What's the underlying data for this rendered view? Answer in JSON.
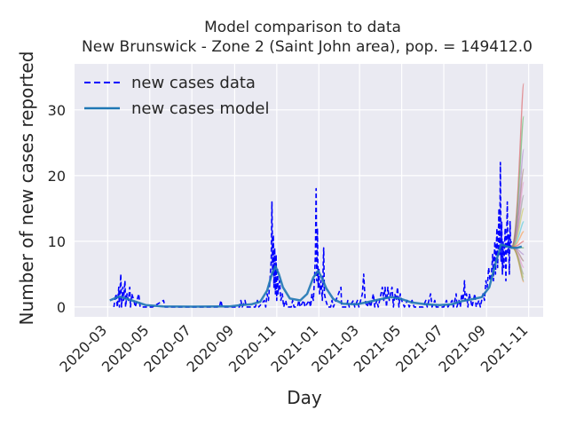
{
  "chart_data": {
    "type": "line",
    "title": "Model comparison to data",
    "subtitle": "New Brunswick - Zone 2 (Saint John area), pop. = 149412.0",
    "xlabel": "Day",
    "ylabel": "Number of new cases reported",
    "x_type": "date",
    "xlim": [
      "2020-01-13",
      "2021-11-22"
    ],
    "ylim": [
      -1.5,
      37
    ],
    "x_ticks": [
      "2020-03",
      "2020-05",
      "2020-07",
      "2020-09",
      "2020-11",
      "2021-01",
      "2021-03",
      "2021-05",
      "2021-07",
      "2021-09",
      "2021-11"
    ],
    "y_ticks": [
      0,
      10,
      20,
      30
    ],
    "grid": true,
    "legend_position": "top-left",
    "background": "#eaeaf2",
    "series": [
      {
        "name": "new cases data",
        "style": "dashed",
        "color": "#0000ff",
        "points": [
          [
            "2020-03-10",
            0
          ],
          [
            "2020-03-13",
            2
          ],
          [
            "2020-03-15",
            0
          ],
          [
            "2020-03-17",
            3
          ],
          [
            "2020-03-18",
            0
          ],
          [
            "2020-03-20",
            5
          ],
          [
            "2020-03-21",
            0
          ],
          [
            "2020-03-23",
            3
          ],
          [
            "2020-03-24",
            1
          ],
          [
            "2020-03-26",
            4
          ],
          [
            "2020-03-27",
            0
          ],
          [
            "2020-03-29",
            2
          ],
          [
            "2020-03-31",
            1
          ],
          [
            "2020-04-02",
            3
          ],
          [
            "2020-04-03",
            0
          ],
          [
            "2020-04-05",
            2
          ],
          [
            "2020-04-08",
            1
          ],
          [
            "2020-04-10",
            0
          ],
          [
            "2020-04-15",
            2
          ],
          [
            "2020-04-17",
            0
          ],
          [
            "2020-05-05",
            0
          ],
          [
            "2020-05-21",
            1
          ],
          [
            "2020-05-23",
            0
          ],
          [
            "2020-08-10",
            0
          ],
          [
            "2020-08-12",
            1
          ],
          [
            "2020-08-14",
            0
          ],
          [
            "2020-09-08",
            0
          ],
          [
            "2020-09-10",
            1
          ],
          [
            "2020-09-12",
            0
          ],
          [
            "2020-09-16",
            1
          ],
          [
            "2020-09-18",
            0
          ],
          [
            "2020-10-01",
            0
          ],
          [
            "2020-10-04",
            1
          ],
          [
            "2020-10-06",
            0
          ],
          [
            "2020-10-14",
            1
          ],
          [
            "2020-10-16",
            0
          ],
          [
            "2020-10-18",
            2
          ],
          [
            "2020-10-20",
            1
          ],
          [
            "2020-10-22",
            4
          ],
          [
            "2020-10-24",
            7
          ],
          [
            "2020-10-25",
            16
          ],
          [
            "2020-10-26",
            5
          ],
          [
            "2020-10-27",
            11
          ],
          [
            "2020-10-28",
            3
          ],
          [
            "2020-10-29",
            9
          ],
          [
            "2020-10-30",
            2
          ],
          [
            "2020-10-31",
            8
          ],
          [
            "2020-11-01",
            1
          ],
          [
            "2020-11-02",
            6
          ],
          [
            "2020-11-03",
            2
          ],
          [
            "2020-11-05",
            4
          ],
          [
            "2020-11-07",
            1
          ],
          [
            "2020-11-09",
            2
          ],
          [
            "2020-11-11",
            0
          ],
          [
            "2020-11-14",
            1
          ],
          [
            "2020-11-16",
            0
          ],
          [
            "2020-11-22",
            0
          ],
          [
            "2020-11-24",
            1
          ],
          [
            "2020-11-26",
            0
          ],
          [
            "2020-12-01",
            0
          ],
          [
            "2020-12-03",
            1
          ],
          [
            "2020-12-05",
            0
          ],
          [
            "2020-12-10",
            1
          ],
          [
            "2020-12-12",
            0
          ],
          [
            "2020-12-18",
            1
          ],
          [
            "2020-12-20",
            0
          ],
          [
            "2020-12-22",
            2
          ],
          [
            "2020-12-24",
            1
          ],
          [
            "2020-12-26",
            5
          ],
          [
            "2020-12-27",
            8
          ],
          [
            "2020-12-28",
            18
          ],
          [
            "2020-12-29",
            4
          ],
          [
            "2020-12-30",
            12
          ],
          [
            "2020-12-31",
            3
          ],
          [
            "2021-01-01",
            6
          ],
          [
            "2021-01-02",
            2
          ],
          [
            "2021-01-04",
            4
          ],
          [
            "2021-01-06",
            1
          ],
          [
            "2021-01-08",
            9
          ],
          [
            "2021-01-09",
            2
          ],
          [
            "2021-01-11",
            1
          ],
          [
            "2021-01-14",
            0
          ],
          [
            "2021-01-18",
            0
          ],
          [
            "2021-01-20",
            1
          ],
          [
            "2021-01-22",
            0
          ],
          [
            "2021-02-02",
            3
          ],
          [
            "2021-02-03",
            0
          ],
          [
            "2021-02-10",
            0
          ],
          [
            "2021-02-12",
            1
          ],
          [
            "2021-02-14",
            0
          ],
          [
            "2021-02-20",
            1
          ],
          [
            "2021-02-22",
            0
          ],
          [
            "2021-02-26",
            1
          ],
          [
            "2021-02-28",
            0
          ],
          [
            "2021-03-05",
            2
          ],
          [
            "2021-03-07",
            5
          ],
          [
            "2021-03-09",
            1
          ],
          [
            "2021-03-12",
            0
          ],
          [
            "2021-03-15",
            1
          ],
          [
            "2021-03-17",
            0
          ],
          [
            "2021-03-21",
            2
          ],
          [
            "2021-03-23",
            0
          ],
          [
            "2021-03-26",
            1
          ],
          [
            "2021-03-28",
            0
          ],
          [
            "2021-04-01",
            2
          ],
          [
            "2021-04-03",
            3
          ],
          [
            "2021-04-05",
            1
          ],
          [
            "2021-04-07",
            3
          ],
          [
            "2021-04-09",
            0
          ],
          [
            "2021-04-11",
            3
          ],
          [
            "2021-04-13",
            1
          ],
          [
            "2021-04-15",
            2
          ],
          [
            "2021-04-17",
            3
          ],
          [
            "2021-04-19",
            0
          ],
          [
            "2021-04-21",
            2
          ],
          [
            "2021-04-23",
            1
          ],
          [
            "2021-04-25",
            3
          ],
          [
            "2021-04-27",
            0
          ],
          [
            "2021-04-29",
            2
          ],
          [
            "2021-05-01",
            1
          ],
          [
            "2021-05-05",
            0
          ],
          [
            "2021-05-09",
            1
          ],
          [
            "2021-05-12",
            0
          ],
          [
            "2021-05-16",
            1
          ],
          [
            "2021-05-19",
            0
          ],
          [
            "2021-06-01",
            0
          ],
          [
            "2021-06-05",
            1
          ],
          [
            "2021-06-07",
            0
          ],
          [
            "2021-06-12",
            2
          ],
          [
            "2021-06-14",
            0
          ],
          [
            "2021-06-18",
            1
          ],
          [
            "2021-06-20",
            0
          ],
          [
            "2021-07-01",
            0
          ],
          [
            "2021-07-05",
            1
          ],
          [
            "2021-07-07",
            0
          ],
          [
            "2021-07-13",
            1
          ],
          [
            "2021-07-15",
            0
          ],
          [
            "2021-07-19",
            2
          ],
          [
            "2021-07-20",
            0
          ],
          [
            "2021-07-23",
            1
          ],
          [
            "2021-07-25",
            0
          ],
          [
            "2021-07-27",
            2
          ],
          [
            "2021-07-29",
            1
          ],
          [
            "2021-07-31",
            4
          ],
          [
            "2021-08-01",
            1
          ],
          [
            "2021-08-03",
            2
          ],
          [
            "2021-08-05",
            0
          ],
          [
            "2021-08-07",
            2
          ],
          [
            "2021-08-09",
            1
          ],
          [
            "2021-08-11",
            0
          ],
          [
            "2021-08-15",
            2
          ],
          [
            "2021-08-17",
            0
          ],
          [
            "2021-08-21",
            1
          ],
          [
            "2021-08-23",
            0
          ],
          [
            "2021-08-27",
            2
          ],
          [
            "2021-08-29",
            1
          ],
          [
            "2021-08-31",
            4
          ],
          [
            "2021-09-02",
            3
          ],
          [
            "2021-09-04",
            6
          ],
          [
            "2021-09-06",
            4
          ],
          [
            "2021-09-08",
            5
          ],
          [
            "2021-09-10",
            8
          ],
          [
            "2021-09-11",
            4
          ],
          [
            "2021-09-13",
            10
          ],
          [
            "2021-09-14",
            5
          ],
          [
            "2021-09-16",
            12
          ],
          [
            "2021-09-17",
            6
          ],
          [
            "2021-09-19",
            15
          ],
          [
            "2021-09-20",
            8
          ],
          [
            "2021-09-21",
            22
          ],
          [
            "2021-09-22",
            7
          ],
          [
            "2021-09-23",
            13
          ],
          [
            "2021-09-24",
            5
          ],
          [
            "2021-09-25",
            10
          ],
          [
            "2021-09-26",
            6
          ],
          [
            "2021-09-28",
            12
          ],
          [
            "2021-09-29",
            4
          ],
          [
            "2021-10-01",
            16
          ],
          [
            "2021-10-02",
            8
          ],
          [
            "2021-10-03",
            11
          ],
          [
            "2021-10-04",
            5
          ],
          [
            "2021-10-05",
            13
          ],
          [
            "2021-10-06",
            9
          ],
          [
            "2021-10-07",
            10
          ]
        ]
      },
      {
        "name": "new cases model",
        "style": "solid",
        "color": "#1f77b4",
        "points": [
          [
            "2020-03-04",
            1.0
          ],
          [
            "2020-03-18",
            1.6
          ],
          [
            "2020-04-05",
            1.0
          ],
          [
            "2020-04-25",
            0.3
          ],
          [
            "2020-05-20",
            0.1
          ],
          [
            "2020-07-01",
            0.05
          ],
          [
            "2020-08-10",
            0.1
          ],
          [
            "2020-08-25",
            0.1
          ],
          [
            "2020-09-10",
            0.3
          ],
          [
            "2020-09-25",
            0.4
          ],
          [
            "2020-10-08",
            0.8
          ],
          [
            "2020-10-18",
            2.5
          ],
          [
            "2020-10-25",
            5.0
          ],
          [
            "2020-10-30",
            6.2
          ],
          [
            "2020-11-04",
            5.0
          ],
          [
            "2020-11-10",
            3.0
          ],
          [
            "2020-11-20",
            1.3
          ],
          [
            "2020-12-05",
            1.0
          ],
          [
            "2020-12-15",
            2.0
          ],
          [
            "2020-12-24",
            4.5
          ],
          [
            "2020-12-31",
            5.5
          ],
          [
            "2021-01-05",
            4.5
          ],
          [
            "2021-01-12",
            2.8
          ],
          [
            "2021-01-22",
            1.2
          ],
          [
            "2021-02-05",
            0.5
          ],
          [
            "2021-02-25",
            0.4
          ],
          [
            "2021-03-15",
            0.8
          ],
          [
            "2021-04-01",
            1.2
          ],
          [
            "2021-04-15",
            1.5
          ],
          [
            "2021-04-28",
            1.3
          ],
          [
            "2021-05-15",
            0.7
          ],
          [
            "2021-06-05",
            0.4
          ],
          [
            "2021-06-25",
            0.3
          ],
          [
            "2021-07-12",
            0.4
          ],
          [
            "2021-07-28",
            0.9
          ],
          [
            "2021-08-12",
            1.2
          ],
          [
            "2021-08-25",
            1.5
          ],
          [
            "2021-09-05",
            3.0
          ],
          [
            "2021-09-15",
            7.0
          ],
          [
            "2021-09-22",
            9.5
          ],
          [
            "2021-10-01",
            9.2
          ],
          [
            "2021-10-08",
            9.0
          ],
          [
            "2021-10-15",
            9.0
          ],
          [
            "2021-10-22",
            9.2
          ]
        ]
      }
    ],
    "model_band": {
      "x_start": "2021-10-07",
      "x_end": "2021-10-25",
      "start_value": 9.1,
      "end_values": [
        34,
        29,
        24,
        21,
        19,
        17,
        15,
        13,
        11.5,
        10,
        9,
        8,
        7,
        6,
        5,
        4.5,
        4,
        3.8
      ],
      "colors": [
        "#d62728",
        "#2ca02c",
        "#9467bd",
        "#8c564b",
        "#e377c2",
        "#7f7f7f",
        "#bcbd22",
        "#17becf",
        "#ff7f0e"
      ]
    }
  }
}
